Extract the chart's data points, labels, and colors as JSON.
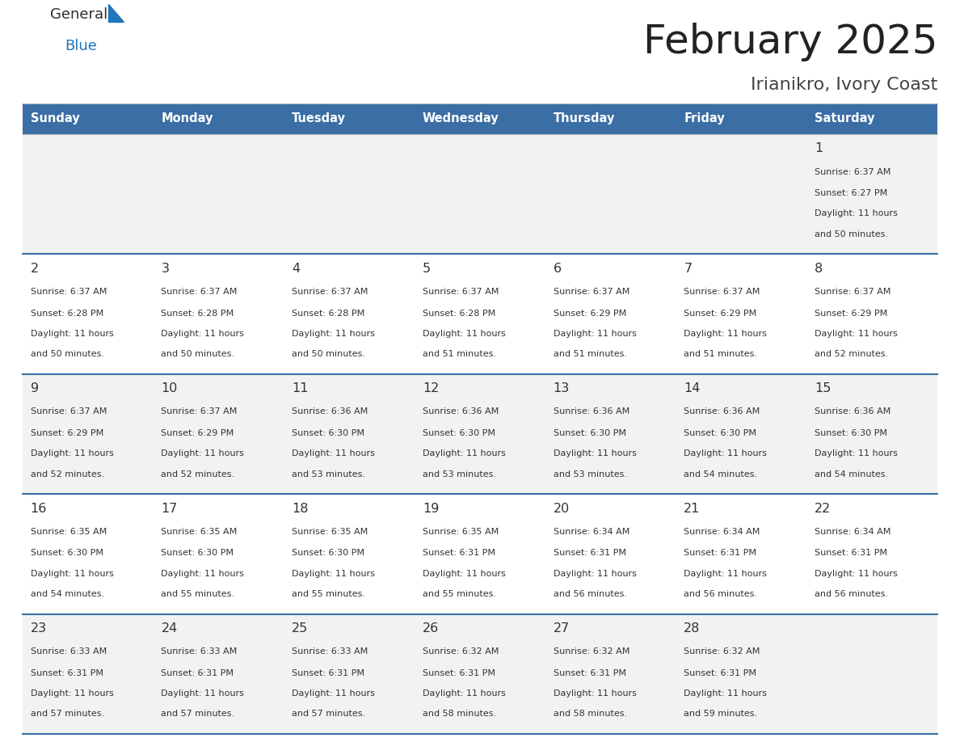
{
  "title": "February 2025",
  "subtitle": "Irianikro, Ivory Coast",
  "header_bg": "#3a6ea5",
  "header_text_color": "#ffffff",
  "days_of_week": [
    "Sunday",
    "Monday",
    "Tuesday",
    "Wednesday",
    "Thursday",
    "Friday",
    "Saturday"
  ],
  "cell_bg_light": "#f2f2f2",
  "cell_bg_white": "#ffffff",
  "cell_text_color": "#333333",
  "day_num_color": "#333333",
  "divider_color": "#3a6ea5",
  "logo_general_color": "#2d2d2d",
  "logo_blue_color": "#2176bc",
  "calendar": [
    [
      null,
      null,
      null,
      null,
      null,
      null,
      {
        "day": 1,
        "sunrise": "6:37 AM",
        "sunset": "6:27 PM",
        "daylight": "11 hours and 50 minutes"
      }
    ],
    [
      {
        "day": 2,
        "sunrise": "6:37 AM",
        "sunset": "6:28 PM",
        "daylight": "11 hours and 50 minutes"
      },
      {
        "day": 3,
        "sunrise": "6:37 AM",
        "sunset": "6:28 PM",
        "daylight": "11 hours and 50 minutes"
      },
      {
        "day": 4,
        "sunrise": "6:37 AM",
        "sunset": "6:28 PM",
        "daylight": "11 hours and 50 minutes"
      },
      {
        "day": 5,
        "sunrise": "6:37 AM",
        "sunset": "6:28 PM",
        "daylight": "11 hours and 51 minutes"
      },
      {
        "day": 6,
        "sunrise": "6:37 AM",
        "sunset": "6:29 PM",
        "daylight": "11 hours and 51 minutes"
      },
      {
        "day": 7,
        "sunrise": "6:37 AM",
        "sunset": "6:29 PM",
        "daylight": "11 hours and 51 minutes"
      },
      {
        "day": 8,
        "sunrise": "6:37 AM",
        "sunset": "6:29 PM",
        "daylight": "11 hours and 52 minutes"
      }
    ],
    [
      {
        "day": 9,
        "sunrise": "6:37 AM",
        "sunset": "6:29 PM",
        "daylight": "11 hours and 52 minutes"
      },
      {
        "day": 10,
        "sunrise": "6:37 AM",
        "sunset": "6:29 PM",
        "daylight": "11 hours and 52 minutes"
      },
      {
        "day": 11,
        "sunrise": "6:36 AM",
        "sunset": "6:30 PM",
        "daylight": "11 hours and 53 minutes"
      },
      {
        "day": 12,
        "sunrise": "6:36 AM",
        "sunset": "6:30 PM",
        "daylight": "11 hours and 53 minutes"
      },
      {
        "day": 13,
        "sunrise": "6:36 AM",
        "sunset": "6:30 PM",
        "daylight": "11 hours and 53 minutes"
      },
      {
        "day": 14,
        "sunrise": "6:36 AM",
        "sunset": "6:30 PM",
        "daylight": "11 hours and 54 minutes"
      },
      {
        "day": 15,
        "sunrise": "6:36 AM",
        "sunset": "6:30 PM",
        "daylight": "11 hours and 54 minutes"
      }
    ],
    [
      {
        "day": 16,
        "sunrise": "6:35 AM",
        "sunset": "6:30 PM",
        "daylight": "11 hours and 54 minutes"
      },
      {
        "day": 17,
        "sunrise": "6:35 AM",
        "sunset": "6:30 PM",
        "daylight": "11 hours and 55 minutes"
      },
      {
        "day": 18,
        "sunrise": "6:35 AM",
        "sunset": "6:30 PM",
        "daylight": "11 hours and 55 minutes"
      },
      {
        "day": 19,
        "sunrise": "6:35 AM",
        "sunset": "6:31 PM",
        "daylight": "11 hours and 55 minutes"
      },
      {
        "day": 20,
        "sunrise": "6:34 AM",
        "sunset": "6:31 PM",
        "daylight": "11 hours and 56 minutes"
      },
      {
        "day": 21,
        "sunrise": "6:34 AM",
        "sunset": "6:31 PM",
        "daylight": "11 hours and 56 minutes"
      },
      {
        "day": 22,
        "sunrise": "6:34 AM",
        "sunset": "6:31 PM",
        "daylight": "11 hours and 56 minutes"
      }
    ],
    [
      {
        "day": 23,
        "sunrise": "6:33 AM",
        "sunset": "6:31 PM",
        "daylight": "11 hours and 57 minutes"
      },
      {
        "day": 24,
        "sunrise": "6:33 AM",
        "sunset": "6:31 PM",
        "daylight": "11 hours and 57 minutes"
      },
      {
        "day": 25,
        "sunrise": "6:33 AM",
        "sunset": "6:31 PM",
        "daylight": "11 hours and 57 minutes"
      },
      {
        "day": 26,
        "sunrise": "6:32 AM",
        "sunset": "6:31 PM",
        "daylight": "11 hours and 58 minutes"
      },
      {
        "day": 27,
        "sunrise": "6:32 AM",
        "sunset": "6:31 PM",
        "daylight": "11 hours and 58 minutes"
      },
      {
        "day": 28,
        "sunrise": "6:32 AM",
        "sunset": "6:31 PM",
        "daylight": "11 hours and 59 minutes"
      },
      null
    ]
  ],
  "figsize": [
    11.88,
    9.18
  ],
  "dpi": 100
}
